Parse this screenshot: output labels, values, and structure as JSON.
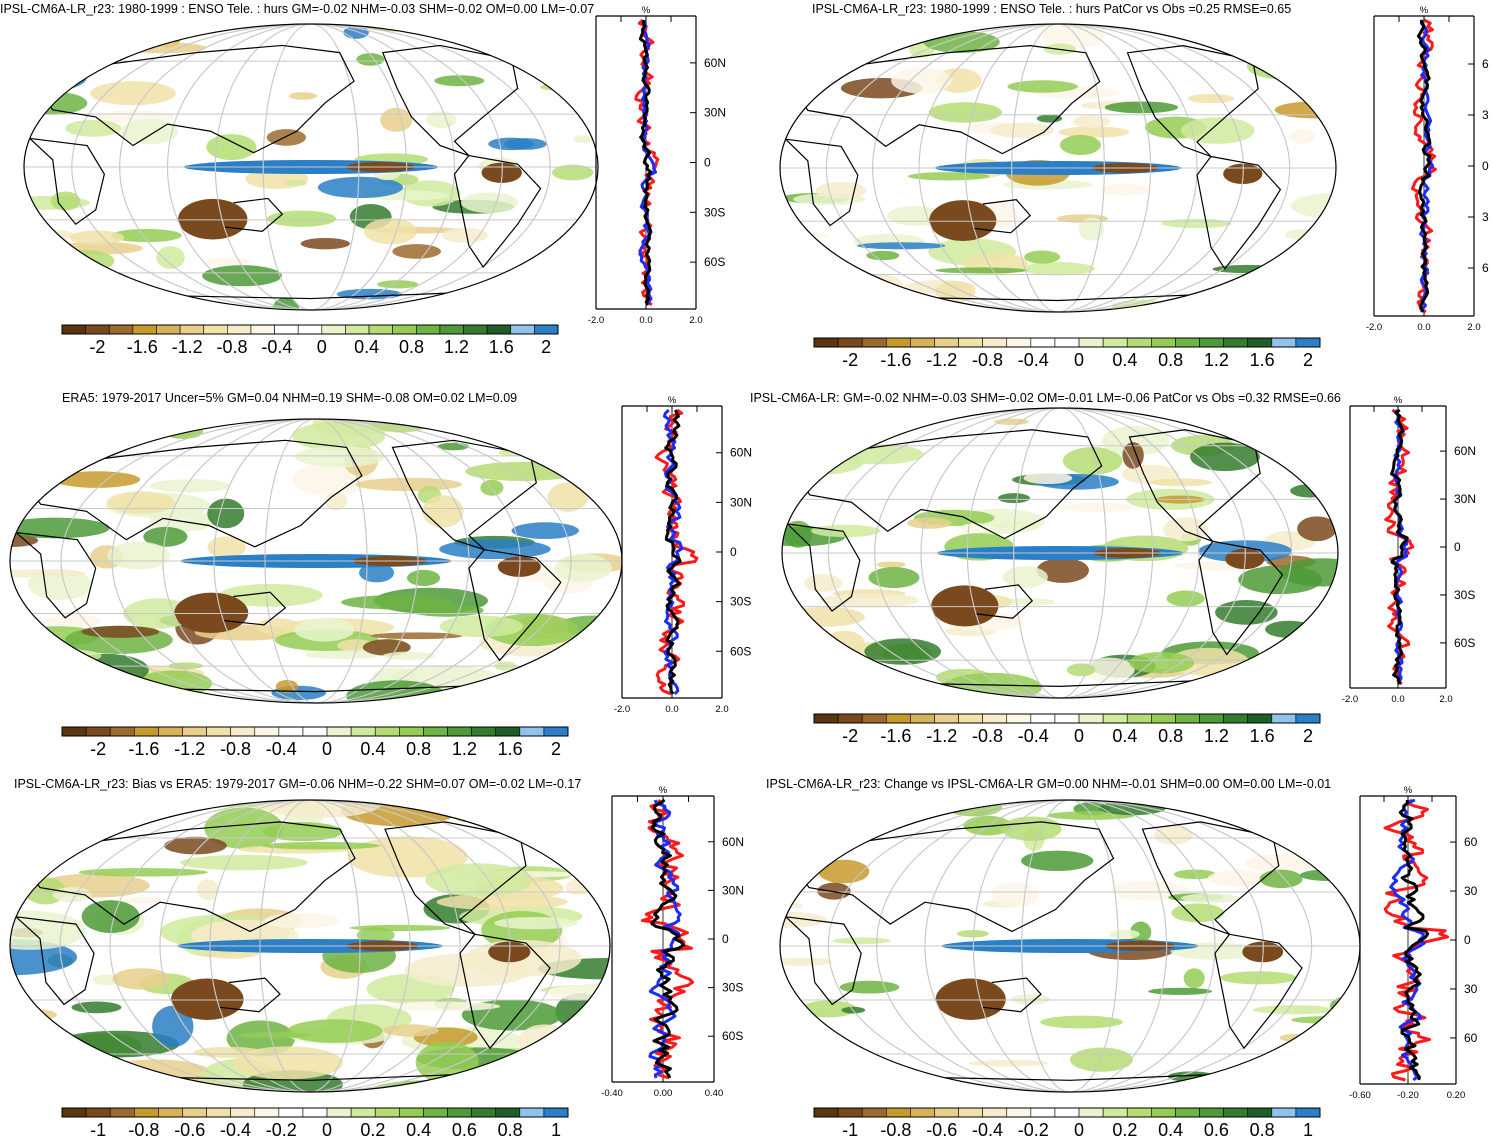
{
  "panels": [
    {
      "title": "IPSL-CM6A-LR_r23: 1980-1999 : ENSO Tele. : hurs GM=-0.02 NHM=-0.03 SHM=-0.02 OM=0.00 LM=-0.07",
      "zonal_unit": "%",
      "lat_labels": [
        "60N",
        "30N",
        "0",
        "30S",
        "60S"
      ],
      "x_ticks": [
        "-2.0",
        "0.0",
        "2.0"
      ],
      "colorbar_labels": [
        "-2",
        "-1.6",
        "-1.2",
        "-0.8",
        "-0.4",
        "0",
        "0.4",
        "0.8",
        "1.2",
        "1.6",
        "2"
      ]
    },
    {
      "title": "IPSL-CM6A-LR_r23: 1980-1999 : ENSO Tele. : hurs PatCor vs Obs =0.25 RMSE=0.65",
      "zonal_unit": "%",
      "lat_labels": [
        "6",
        "3",
        "0",
        "3",
        "6"
      ],
      "x_ticks": [
        "-2.0",
        "0.0",
        "2.0"
      ],
      "colorbar_labels": [
        "-2",
        "-1.6",
        "-1.2",
        "-0.8",
        "-0.4",
        "0",
        "0.4",
        "0.8",
        "1.2",
        "1.6",
        "2"
      ]
    },
    {
      "title": "ERA5: 1979-2017 Uncer=5% GM=0.04 NHM=0.19 SHM=-0.08 OM=0.02 LM=0.09",
      "zonal_unit": "%",
      "lat_labels": [
        "60N",
        "30N",
        "0",
        "30S",
        "60S"
      ],
      "x_ticks": [
        "-2.0",
        "0.0",
        "2.0"
      ],
      "colorbar_labels": [
        "-2",
        "-1.6",
        "-1.2",
        "-0.8",
        "-0.4",
        "0",
        "0.4",
        "0.8",
        "1.2",
        "1.6",
        "2"
      ]
    },
    {
      "title": "IPSL-CM6A-LR: GM=-0.02 NHM=-0.03 SHM=-0.02 OM=-0.01 LM=-0.06 PatCor vs Obs =0.32 RMSE=0.66",
      "zonal_unit": "%",
      "lat_labels": [
        "60N",
        "30N",
        "0",
        "30S",
        "60S"
      ],
      "x_ticks": [
        "-2.0",
        "0.0",
        "2.0"
      ],
      "colorbar_labels": [
        "-2",
        "-1.6",
        "-1.2",
        "-0.8",
        "-0.4",
        "0",
        "0.4",
        "0.8",
        "1.2",
        "1.6",
        "2"
      ]
    },
    {
      "title": "IPSL-CM6A-LR_r23: Bias vs ERA5: 1979-2017 GM=-0.06 NHM=-0.22 SHM=0.07 OM=-0.02 LM=-0.17",
      "zonal_unit": "%",
      "lat_labels": [
        "60N",
        "30N",
        "0",
        "30S",
        "60S"
      ],
      "x_ticks": [
        "-0.40",
        "0.00",
        "0.40"
      ],
      "colorbar_labels": [
        "-1",
        "-0.8",
        "-0.6",
        "-0.4",
        "-0.2",
        "0",
        "0.2",
        "0.4",
        "0.6",
        "0.8",
        "1"
      ]
    },
    {
      "title": "IPSL-CM6A-LR_r23: Change vs IPSL-CM6A-LR GM=0.00 NHM=-0.01 SHM=0.00 OM=0.00 LM=-0.01",
      "zonal_unit": "%",
      "lat_labels": [
        "60",
        "30",
        "0",
        "30",
        "60"
      ],
      "x_ticks": [
        "-0.60",
        "-0.20",
        "0.20"
      ],
      "colorbar_labels": [
        "-1",
        "-0.8",
        "-0.6",
        "-0.4",
        "-0.2",
        "0",
        "0.2",
        "0.4",
        "0.6",
        "0.8",
        "1"
      ]
    }
  ],
  "colors": {
    "colorbar": [
      "#5a3510",
      "#7a4a1e",
      "#9b6a2e",
      "#c79a2c",
      "#d6b25a",
      "#e8d08c",
      "#f0e2a8",
      "#f6eccb",
      "#fbf6e6",
      "#ffffff",
      "#ffffff",
      "#e9f4cf",
      "#d0ea9e",
      "#b4dc72",
      "#94cc54",
      "#6db443",
      "#4e9a38",
      "#357c2e",
      "#1f5e28",
      "#8fc3ec",
      "#2a7fc6"
    ],
    "ocean_fill": "#ffffff",
    "land_line": "#000000",
    "grid_line": "#c8c8c8",
    "zonal_red": "#ff1a1a",
    "zonal_blue": "#1a2cff",
    "zonal_black": "#000000"
  }
}
